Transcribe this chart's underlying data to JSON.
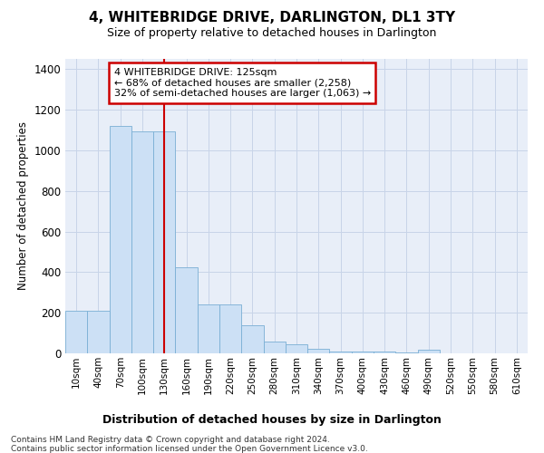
{
  "title": "4, WHITEBRIDGE DRIVE, DARLINGTON, DL1 3TY",
  "subtitle": "Size of property relative to detached houses in Darlington",
  "xlabel": "Distribution of detached houses by size in Darlington",
  "ylabel": "Number of detached properties",
  "categories": [
    "10sqm",
    "40sqm",
    "70sqm",
    "100sqm",
    "130sqm",
    "160sqm",
    "190sqm",
    "220sqm",
    "250sqm",
    "280sqm",
    "310sqm",
    "340sqm",
    "370sqm",
    "400sqm",
    "430sqm",
    "460sqm",
    "490sqm",
    "520sqm",
    "550sqm",
    "580sqm",
    "610sqm"
  ],
  "values": [
    210,
    210,
    1120,
    1095,
    1095,
    425,
    240,
    240,
    140,
    60,
    45,
    22,
    10,
    10,
    10,
    5,
    18,
    0,
    0,
    0,
    0
  ],
  "bar_color": "#cce0f5",
  "bar_edge_color": "#7aafd4",
  "bar_width": 1.0,
  "vline_x_index": 4,
  "vline_color": "#cc0000",
  "annotation_line1": "4 WHITEBRIDGE DRIVE: 125sqm",
  "annotation_line2": "← 68% of detached houses are smaller (2,258)",
  "annotation_line3": "32% of semi-detached houses are larger (1,063) →",
  "annotation_box_color": "#ffffff",
  "annotation_box_edge_color": "#cc0000",
  "ylim": [
    0,
    1450
  ],
  "yticks": [
    0,
    200,
    400,
    600,
    800,
    1000,
    1200,
    1400
  ],
  "grid_color": "#c8d4e8",
  "bg_color": "#e8eef8",
  "footnote1": "Contains HM Land Registry data © Crown copyright and database right 2024.",
  "footnote2": "Contains public sector information licensed under the Open Government Licence v3.0."
}
